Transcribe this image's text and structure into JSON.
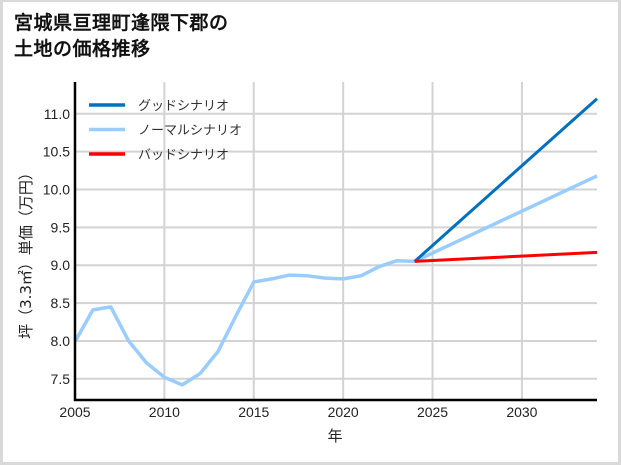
{
  "title": {
    "line1": "宮城県亘理町逢隈下郡の",
    "line2": "土地の価格推移"
  },
  "chart_data": {
    "type": "line",
    "title": "宮城県亘理町逢隈下郡の土地の価格推移",
    "xlabel": "年",
    "ylabel": "坪（3.3㎡）単価（万円）",
    "xlim": [
      2005,
      2034.2
    ],
    "ylim": [
      7.22,
      11.42
    ],
    "xticks": [
      2005,
      2010,
      2015,
      2020,
      2025,
      2030
    ],
    "yticks": [
      7.5,
      8.0,
      8.5,
      9.0,
      9.5,
      10.0,
      10.5,
      11.0
    ],
    "ytick_labels": [
      "7.5",
      "8.0",
      "8.5",
      "9.0",
      "9.5",
      "10.0",
      "10.5",
      "11.0"
    ],
    "grid": true,
    "legend_position": "upper left",
    "series": [
      {
        "name": "グッドシナリオ",
        "color": "#0070c0",
        "x": [
          2024,
          2034.2
        ],
        "y": [
          9.05,
          11.2
        ]
      },
      {
        "name": "ノーマルシナリオ",
        "color": "#99ccff",
        "x": [
          2005,
          2006,
          2007,
          2008,
          2009,
          2010,
          2011,
          2012,
          2013,
          2014,
          2015,
          2016,
          2017,
          2018,
          2019,
          2020,
          2021,
          2022,
          2023,
          2024,
          2034.2
        ],
        "y": [
          7.99,
          8.41,
          8.45,
          8.0,
          7.71,
          7.52,
          7.42,
          7.57,
          7.86,
          8.33,
          8.78,
          8.82,
          8.87,
          8.86,
          8.83,
          8.82,
          8.86,
          8.98,
          9.06,
          9.05,
          10.18
        ]
      },
      {
        "name": "バッドシナリオ",
        "color": "#ff0000",
        "x": [
          2024,
          2034.2
        ],
        "y": [
          9.05,
          9.17
        ]
      }
    ]
  },
  "colors": {
    "grid": "#d3d3d3",
    "axis": "#000000",
    "frame": "#d9d9d9"
  }
}
